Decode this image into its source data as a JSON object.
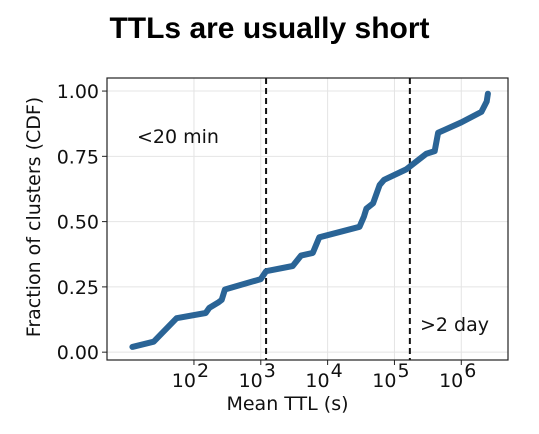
{
  "page": {
    "title": "TTLs are usually short"
  },
  "chart_data": {
    "type": "line",
    "title": "TTLs are usually short",
    "xlabel": "Mean TTL (s)",
    "ylabel": "Fraction of clusters (CDF)",
    "xscale": "log",
    "xlim": [
      5,
      5000000
    ],
    "ylim": [
      -0.03,
      1.05
    ],
    "grid": true,
    "x_ticks": [
      {
        "value": 100,
        "base": "10",
        "exp": "2"
      },
      {
        "value": 1000,
        "base": "10",
        "exp": "3"
      },
      {
        "value": 10000,
        "base": "10",
        "exp": "4"
      },
      {
        "value": 100000,
        "base": "10",
        "exp": "5"
      },
      {
        "value": 1000000,
        "base": "10",
        "exp": "6"
      }
    ],
    "y_ticks": [
      {
        "value": 0.0,
        "label": "0.00"
      },
      {
        "value": 0.25,
        "label": "0.25"
      },
      {
        "value": 0.5,
        "label": "0.50"
      },
      {
        "value": 0.75,
        "label": "0.75"
      },
      {
        "value": 1.0,
        "label": "1.00"
      }
    ],
    "series": [
      {
        "color": "#2a6496",
        "x": [
          12,
          25,
          55,
          150,
          170,
          230,
          260,
          290,
          1000,
          1200,
          3000,
          4000,
          6000,
          7500,
          30000,
          35000,
          38000,
          48000,
          60000,
          70000,
          150000,
          300000,
          400000,
          450000,
          1000000,
          2000000,
          2400000,
          2500000
        ],
        "y": [
          0.02,
          0.04,
          0.13,
          0.15,
          0.17,
          0.19,
          0.2,
          0.24,
          0.28,
          0.31,
          0.33,
          0.37,
          0.38,
          0.44,
          0.48,
          0.52,
          0.55,
          0.57,
          0.64,
          0.66,
          0.7,
          0.76,
          0.77,
          0.84,
          0.88,
          0.92,
          0.96,
          0.99
        ]
      }
    ],
    "vlines": [
      {
        "x": 1200,
        "style": "dashed",
        "color": "#111111"
      },
      {
        "x": 170000,
        "style": "dashed",
        "color": "#111111"
      }
    ],
    "annotations": [
      {
        "text": "<20 min"
      },
      {
        "text": ">2 day"
      }
    ]
  }
}
